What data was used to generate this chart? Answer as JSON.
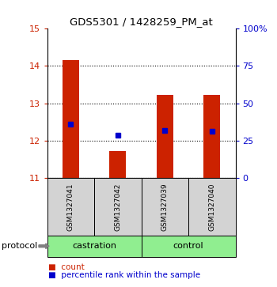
{
  "title": "GDS5301 / 1428259_PM_at",
  "samples": [
    "GSM1327041",
    "GSM1327042",
    "GSM1327039",
    "GSM1327040"
  ],
  "bar_tops": [
    14.15,
    11.72,
    13.22,
    13.22
  ],
  "bar_bottom": 11.0,
  "percentile_vals": [
    12.45,
    12.15,
    12.28,
    12.25
  ],
  "bar_color": "#CC2200",
  "dot_color": "#0000CC",
  "ylim_left": [
    11,
    15
  ],
  "yticks_left": [
    11,
    12,
    13,
    14,
    15
  ],
  "yticks_right": [
    0,
    25,
    50,
    75,
    100
  ],
  "ytick_labels_right": [
    "0",
    "25",
    "50",
    "75",
    "100%"
  ],
  "background_color": "#ffffff",
  "group_names": [
    "castration",
    "control"
  ],
  "group_color": "#90EE90",
  "sample_box_color": "#d3d3d3"
}
